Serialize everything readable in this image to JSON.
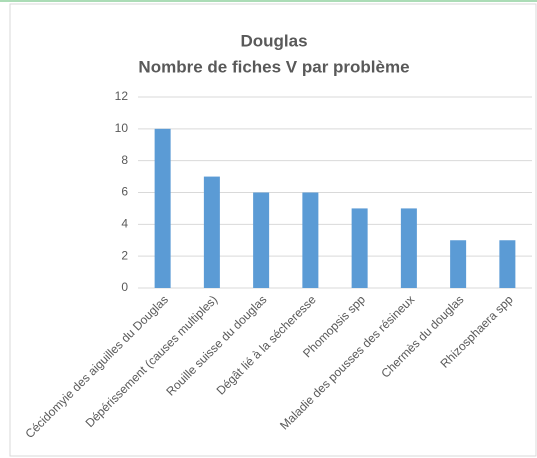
{
  "chart_data": {
    "type": "bar",
    "title": [
      "Douglas",
      "Nombre de fiches V par problème"
    ],
    "categories": [
      "Cécidomyie des aiguilles du Douglas",
      "Dépérissement (causes multiples)",
      "Rouille suisse du douglas",
      "Dégât lié à la sécheresse",
      "Phomopsis spp",
      "Maladie des pousses des résineux",
      "Chermès du douglas",
      "Rhizosphaera spp"
    ],
    "values": [
      10,
      7,
      6,
      6,
      5,
      5,
      3,
      3
    ],
    "color": "#5b9bd5",
    "ylim": [
      0,
      12
    ],
    "yticks": [
      0,
      2,
      4,
      6,
      8,
      10,
      12
    ],
    "grid": true
  }
}
